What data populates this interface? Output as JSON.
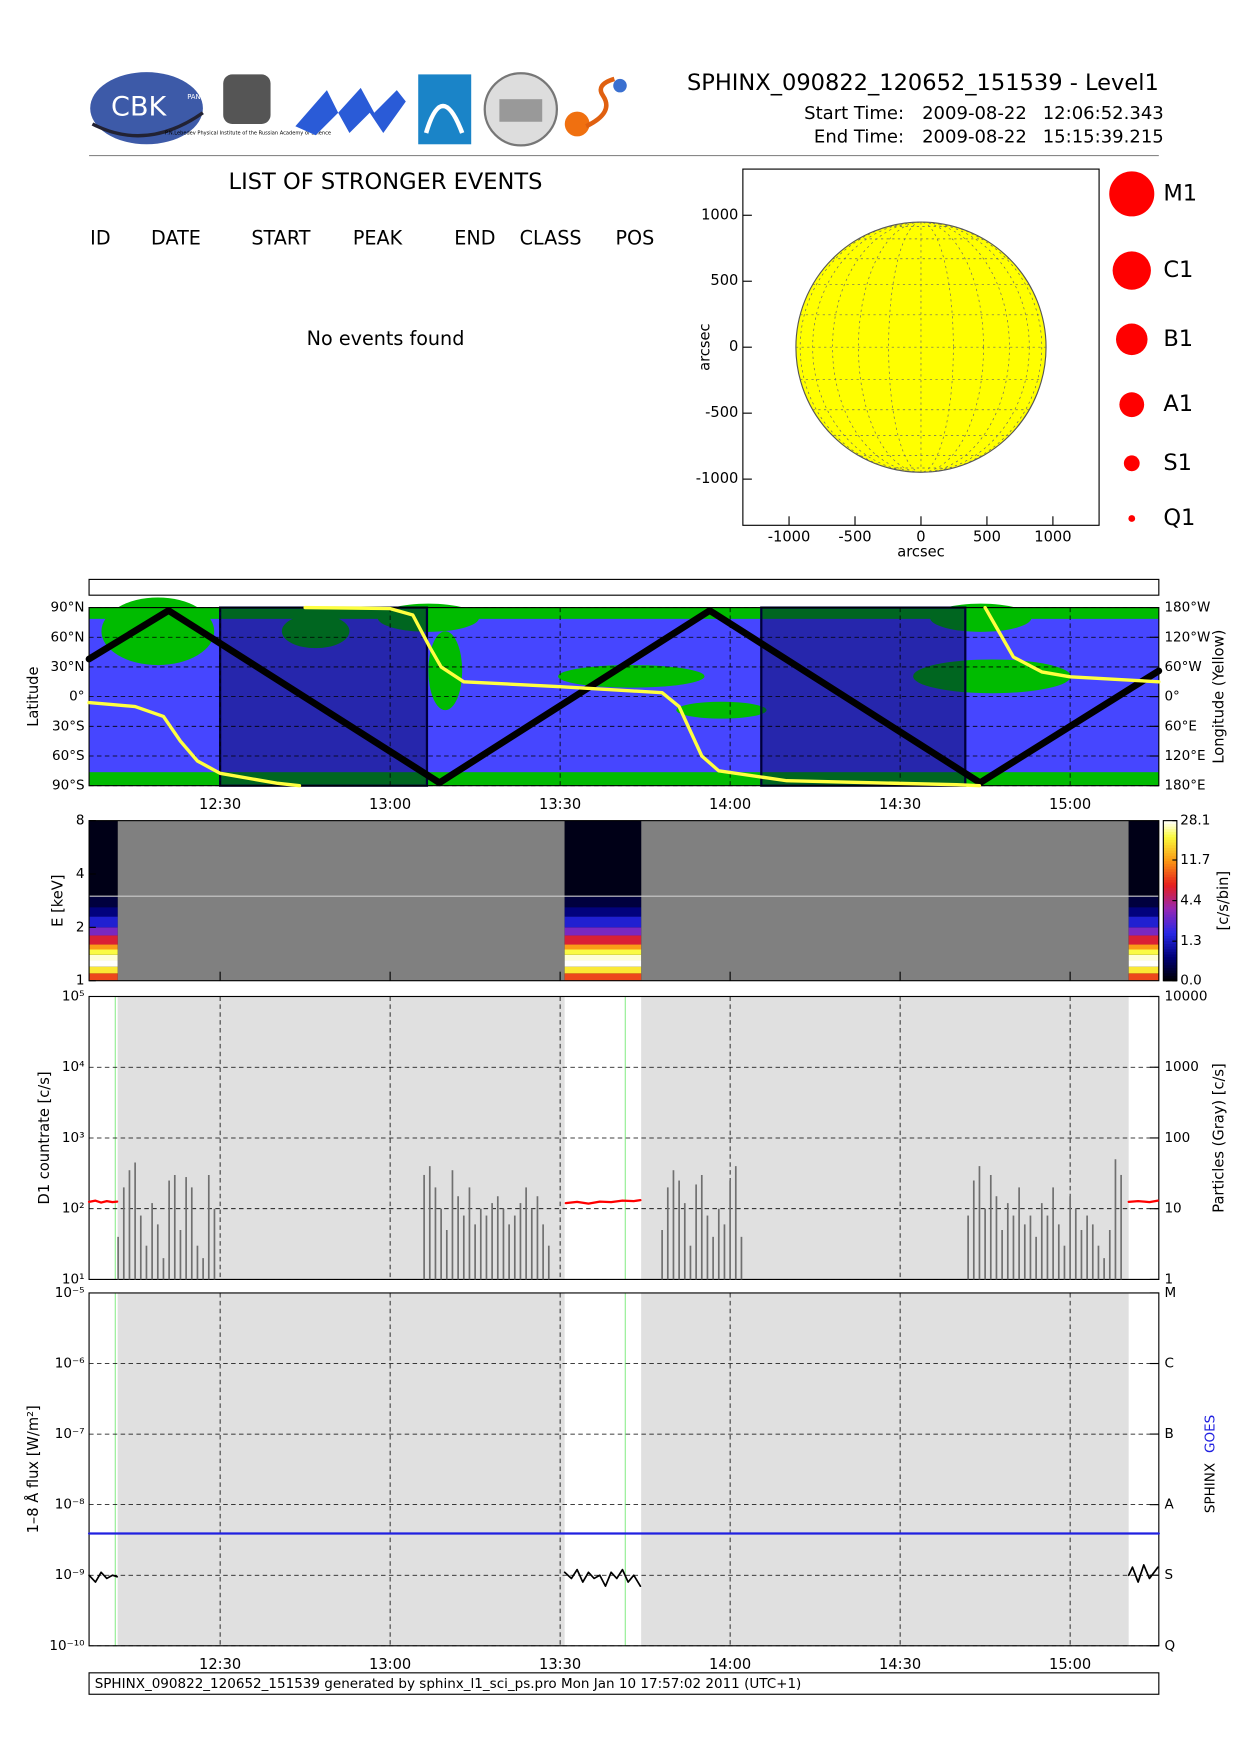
{
  "header": {
    "title": "SPHINX_090822_120652_151539 - Level1",
    "start_label": "Start Time:",
    "start_date": "2009-08-22",
    "start_time": "12:06:52.343",
    "end_label": "End Time:",
    "end_date": "2009-08-22",
    "end_time": "15:15:39.215",
    "logo_text": "CBK",
    "logo_sub": "PAN",
    "lebedev": "P.N.Lebedev Physical Institute of the Russian Academy of Science"
  },
  "events": {
    "title": "LIST OF STRONGER EVENTS",
    "columns": [
      "ID",
      "DATE",
      "START",
      "PEAK",
      "END",
      "CLASS",
      "POS"
    ],
    "message": "No events found"
  },
  "footer": "SPHINX_090822_120652_151539 generated by sphinx_l1_sci_ps.pro Mon Jan 10 17:57:02 2011 (UTC+1)",
  "observation_intervals": [
    [
      "12:06:52.343",
      "12:11:55"
    ],
    [
      "13:30:48",
      "13:44:18"
    ],
    [
      "15:10:20",
      "15:15:39.215"
    ]
  ],
  "markers": {
    "x": [
      "12:11:30",
      "13:41:30"
    ],
    "color": "#90ee90"
  },
  "chart_data": [
    {
      "type": "disk",
      "xlabel": "arcsec",
      "ylabel": "arcsec",
      "xlim": [
        -1350,
        1350
      ],
      "ylim": [
        -1350,
        1350
      ],
      "xticks": [
        -1000,
        -500,
        0,
        500,
        1000
      ],
      "yticks": [
        -1000,
        -500,
        0,
        500,
        1000
      ],
      "radius": 948,
      "color": "#ffff00",
      "grid": true,
      "legend": {
        "labels": [
          "M1",
          "C1",
          "B1",
          "A1",
          "S1",
          "Q1"
        ],
        "color": "#ff0000"
      }
    },
    {
      "type": "line",
      "ylabel": "Latitude",
      "y2label": "Longitude (Yellow)",
      "xlim": [
        "12:06:52.343",
        "15:15:39.215"
      ],
      "xticks": [
        "12:30",
        "13:00",
        "13:30",
        "14:00",
        "14:30",
        "15:00"
      ],
      "ylim": [
        -90,
        90
      ],
      "yticks": [
        {
          "value": 90,
          "label": "90°N"
        },
        {
          "value": 60,
          "label": "60°N"
        },
        {
          "value": 30,
          "label": "30°N"
        },
        {
          "value": 0,
          "label": "0°"
        },
        {
          "value": -30,
          "label": "30°S"
        },
        {
          "value": -60,
          "label": "60°S"
        },
        {
          "value": -90,
          "label": "90°S"
        }
      ],
      "y2lim": [
        180,
        -180
      ],
      "y2ticks": [
        {
          "value": -180,
          "label": "180°W"
        },
        {
          "value": -120,
          "label": "120°W"
        },
        {
          "value": -60,
          "label": "60°W"
        },
        {
          "value": 0,
          "label": "0°"
        },
        {
          "value": 60,
          "label": "60°E"
        },
        {
          "value": 120,
          "label": "120°E"
        },
        {
          "value": 180,
          "label": "180°E"
        }
      ],
      "grid": true,
      "shaded": [
        [
          "12:30:00",
          "13:06:30"
        ],
        [
          "14:05:30",
          "14:41:30"
        ]
      ],
      "series": [
        {
          "color": "#000000",
          "x": [
            "12:06:52",
            "12:20:54",
            "13:08:42",
            "13:56:24",
            "14:44:06",
            "15:15:39"
          ],
          "values": [
            38,
            87,
            -87,
            87,
            -87,
            26
          ]
        },
        {
          "color": "#ffff40",
          "axis": "y2",
          "x": [
            "12:06:52",
            "12:15:00",
            "12:20:00",
            "12:23:00",
            "12:26:00",
            "12:30:00",
            "12:40:00",
            "12:44:00",
            "12:44:30",
            "12:45:00",
            "13:00:00",
            "13:04:00",
            "13:07:00",
            "13:09:00",
            "13:13:00",
            "13:30:00",
            "13:48:00",
            "13:51:00",
            "13:53:00",
            "13:55:00",
            "13:58:00",
            "14:10:00",
            "14:40:00",
            "14:44:00",
            "14:44:30",
            "14:45:00",
            "14:47:00",
            "14:50:00",
            "14:55:00",
            "15:00:00",
            "15:15:39"
          ],
          "values": [
            12,
            20,
            40,
            90,
            130,
            155,
            175,
            180,
            null,
            -180,
            -178,
            -165,
            -100,
            -60,
            -30,
            -20,
            -8,
            20,
            70,
            120,
            150,
            170,
            178,
            180,
            null,
            -180,
            -140,
            -80,
            -50,
            -40,
            -30
          ]
        }
      ]
    },
    {
      "type": "heatmap",
      "ylabel": "E [keV]",
      "ylim": [
        1,
        8
      ],
      "yticks": [
        1,
        2,
        4,
        8
      ],
      "log": true,
      "xlim": [
        "12:06:52.343",
        "15:15:39.215"
      ],
      "xticks": [
        "12:30",
        "13:00",
        "13:30",
        "14:00",
        "14:30",
        "15:00"
      ],
      "energy_edges": [
        1.0,
        1.1,
        1.2,
        1.3,
        1.4,
        1.5,
        1.6,
        1.8,
        2.0,
        2.3,
        2.6,
        3.0,
        8.0
      ],
      "values": [
        8,
        18,
        28,
        26,
        20,
        12,
        6,
        3,
        1.5,
        0.7,
        0.3,
        0.1
      ],
      "hline": 3,
      "colorbar": {
        "label": "[c/s/bin]",
        "lim": [
          0,
          28.1
        ],
        "ticks": [
          {
            "value": 0,
            "label": "0.0"
          },
          1.3,
          4.4,
          11.7,
          28.1
        ]
      }
    },
    {
      "type": "line",
      "ylabel": "D1 countrate [c/s]",
      "y2label": "Particles (Gray) [c/s]",
      "log": true,
      "xlim": [
        "12:06:52.343",
        "15:15:39.215"
      ],
      "xticks": [
        "12:30",
        "13:00",
        "13:30",
        "14:00",
        "14:30",
        "15:00"
      ],
      "ylim": [
        10,
        100000
      ],
      "yticks": [
        {
          "value": 10,
          "label": "10¹"
        },
        {
          "value": 100,
          "label": "10²"
        },
        {
          "value": 1000,
          "label": "10³"
        },
        {
          "value": 10000,
          "label": "10⁴"
        },
        {
          "value": 100000,
          "label": "10⁵"
        }
      ],
      "y2lim": [
        1,
        10000
      ],
      "y2ticks": [
        1,
        10,
        100,
        1000,
        10000
      ],
      "grid": true,
      "series": [
        {
          "color": "#ff0000",
          "x": [
            "12:06:52",
            "12:08:00",
            "12:09:00",
            "12:10:00",
            "12:11:00",
            "12:11:50",
            "13:00:00",
            "13:31:00",
            "13:33:00",
            "13:35:00",
            "13:37:00",
            "13:39:00",
            "13:41:00",
            "13:43:00",
            "13:44:10",
            "14:30:00",
            "15:10:20",
            "15:12:00",
            "15:14:00",
            "15:15:30"
          ],
          "values": [
            125,
            130,
            122,
            128,
            124,
            126,
            null,
            120,
            125,
            118,
            126,
            124,
            130,
            128,
            132,
            null,
            125,
            128,
            124,
            130
          ]
        },
        {
          "color": "#707070",
          "axis": "y2",
          "bar": true,
          "x": [
            "12:12",
            "12:13",
            "12:14",
            "12:15",
            "12:16",
            "12:17",
            "12:18",
            "12:19",
            "12:20",
            "12:21",
            "12:22",
            "12:23",
            "12:24",
            "12:25",
            "12:26",
            "12:27",
            "12:28",
            "12:29",
            "13:06",
            "13:07",
            "13:08",
            "13:09",
            "13:10",
            "13:11",
            "13:12",
            "13:13",
            "13:14",
            "13:15",
            "13:16",
            "13:17",
            "13:18",
            "13:19",
            "13:20",
            "13:21",
            "13:22",
            "13:23",
            "13:24",
            "13:25",
            "13:26",
            "13:27",
            "13:28",
            "13:48",
            "13:49",
            "13:50",
            "13:51",
            "13:52",
            "13:53",
            "13:54",
            "13:55",
            "13:56",
            "13:57",
            "13:58",
            "13:59",
            "14:00",
            "14:01",
            "14:02",
            "14:42",
            "14:43",
            "14:44",
            "14:45",
            "14:46",
            "14:47",
            "14:48",
            "14:49",
            "14:50",
            "14:51",
            "14:52",
            "14:53",
            "14:54",
            "14:55",
            "14:56",
            "14:57",
            "14:58",
            "14:59",
            "15:00",
            "15:01",
            "15:02",
            "15:03",
            "15:04",
            "15:05",
            "15:06",
            "15:07",
            "15:08",
            "15:09"
          ],
          "values": [
            4,
            20,
            35,
            45,
            8,
            3,
            12,
            6,
            2,
            25,
            30,
            5,
            28,
            20,
            3,
            2,
            30,
            10,
            30,
            40,
            20,
            10,
            5,
            35,
            15,
            8,
            20,
            6,
            10,
            8,
            12,
            15,
            10,
            6,
            8,
            12,
            20,
            10,
            15,
            6,
            3,
            5,
            20,
            35,
            25,
            12,
            3,
            22,
            30,
            8,
            4,
            10,
            6,
            25,
            40,
            4,
            8,
            25,
            40,
            10,
            30,
            15,
            5,
            12,
            8,
            20,
            6,
            8,
            4,
            12,
            8,
            20,
            6,
            3,
            15,
            10,
            5,
            8,
            6,
            3,
            2,
            5,
            50,
            30
          ]
        }
      ]
    },
    {
      "type": "line",
      "ylabel": "1–8 Å flux [W/m²]",
      "log": true,
      "xlim": [
        "12:06:52.343",
        "15:15:39.215"
      ],
      "xticks": [
        "12:30",
        "13:00",
        "13:30",
        "14:00",
        "14:30",
        "15:00"
      ],
      "ylim": [
        1e-10,
        1e-05
      ],
      "yticks": [
        {
          "value": 1e-10,
          "label": "10⁻¹⁰"
        },
        {
          "value": 1e-09,
          "label": "10⁻⁹"
        },
        {
          "value": 1e-08,
          "label": "10⁻⁸"
        },
        {
          "value": 1e-07,
          "label": "10⁻⁷"
        },
        {
          "value": 1e-06,
          "label": "10⁻⁶"
        },
        {
          "value": 1e-05,
          "label": "10⁻⁵"
        }
      ],
      "y2lim": [
        1e-10,
        1e-05
      ],
      "y2ticks": [
        {
          "value": 1e-10,
          "label": "Q"
        },
        {
          "value": 1e-09,
          "label": "S"
        },
        {
          "value": 1e-08,
          "label": "A"
        },
        {
          "value": 1e-07,
          "label": "B"
        },
        {
          "value": 1e-06,
          "label": "C"
        },
        {
          "value": 1e-05,
          "label": "M"
        }
      ],
      "grid": true,
      "series": [
        {
          "name": "SPHINX",
          "color": "#000000",
          "x": [
            "12:06:52",
            "12:08:00",
            "12:09:00",
            "12:10:00",
            "12:11:00",
            "12:11:50",
            "12:30:00",
            "13:30:48",
            "13:32:00",
            "13:33:00",
            "13:34:00",
            "13:35:00",
            "13:36:00",
            "13:37:00",
            "13:38:00",
            "13:39:00",
            "13:40:00",
            "13:41:00",
            "13:42:00",
            "13:43:00",
            "13:44:10",
            "14:30:00",
            "15:10:20",
            "15:11:00",
            "15:12:00",
            "15:13:00",
            "15:14:00",
            "15:15:30"
          ],
          "values": [
            1e-09,
            8e-10,
            1.1e-09,
            9e-10,
            1e-09,
            9.5e-10,
            null,
            1.1e-09,
            9e-10,
            1.2e-09,
            8e-10,
            1.1e-09,
            9e-10,
            1e-09,
            7e-10,
            1.1e-09,
            9e-10,
            1.2e-09,
            8e-10,
            1e-09,
            7e-10,
            null,
            1e-09,
            1.3e-09,
            8e-10,
            1.4e-09,
            9e-10,
            1.3e-09
          ]
        },
        {
          "name": "GOES",
          "color": "#2020e0",
          "x": [
            "12:06:52.343",
            "15:15:39.215"
          ],
          "values": [
            3.9e-09,
            3.9e-09
          ]
        }
      ]
    }
  ]
}
